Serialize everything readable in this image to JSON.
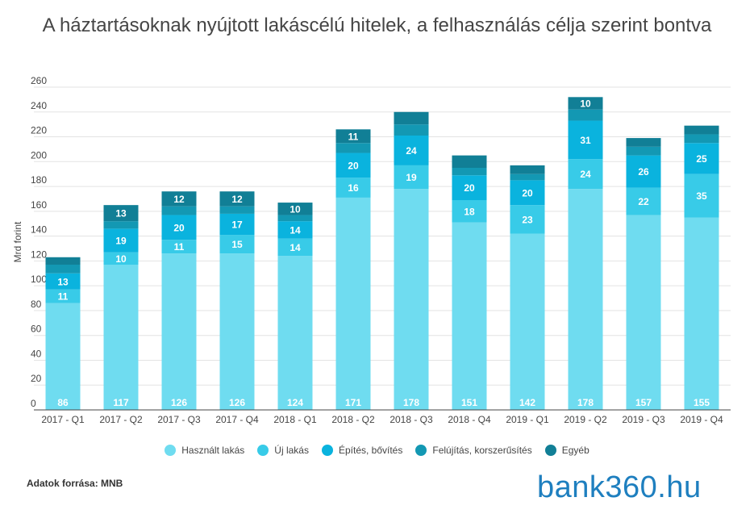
{
  "title": "A háztartásoknak nyújtott lakáscélú hitelek, a felhasználás célja szerint bontva",
  "source": "Adatok forrása: MNB",
  "logo_text": "bank360.hu",
  "colors": {
    "hasznalt": "#6fdcf0",
    "uj": "#38cbe8",
    "epites": "#0ab3de",
    "felujitas": "#1398b3",
    "egyeb": "#117f96",
    "grid": "#e3e3e3",
    "text": "#454545",
    "logo": "#1e7fbf"
  },
  "chart_data": {
    "type": "bar",
    "stacked": true,
    "ylabel": "Mrd forint",
    "xlabel": "",
    "ylim": [
      0,
      260
    ],
    "yticks": [
      0,
      20,
      40,
      60,
      80,
      100,
      120,
      140,
      160,
      180,
      200,
      220,
      240,
      260
    ],
    "categories": [
      "2017 - Q1",
      "2017 - Q2",
      "2017 - Q3",
      "2017 - Q4",
      "2018 - Q1",
      "2018 - Q2",
      "2018 - Q3",
      "2018 - Q4",
      "2019 - Q1",
      "2019 - Q2",
      "2019 - Q3",
      "2019 - Q4"
    ],
    "series": [
      {
        "name": "Használt lakás",
        "color": "#6fdcf0",
        "values": [
          86,
          117,
          126,
          126,
          124,
          171,
          178,
          151,
          142,
          178,
          157,
          155
        ],
        "labeled": true
      },
      {
        "name": "Új lakás",
        "color": "#38cbe8",
        "values": [
          11,
          10,
          11,
          15,
          14,
          16,
          19,
          18,
          23,
          24,
          22,
          35
        ],
        "labeled": true
      },
      {
        "name": "Építés, bővítés",
        "color": "#0ab3de",
        "values": [
          13,
          19,
          20,
          17,
          14,
          20,
          24,
          20,
          20,
          31,
          26,
          25
        ],
        "labeled": true
      },
      {
        "name": "Felújítás, korszerűsítés",
        "color": "#1398b3",
        "values": [
          7,
          6,
          7,
          6,
          5,
          8,
          9,
          6,
          5,
          9,
          7,
          7
        ],
        "labeled": false
      },
      {
        "name": "Egyéb",
        "color": "#117f96",
        "values": [
          6,
          13,
          12,
          12,
          10,
          11,
          10,
          10,
          7,
          10,
          7,
          7
        ],
        "labeled": [
          false,
          true,
          true,
          true,
          true,
          true,
          false,
          false,
          false,
          true,
          false,
          false
        ]
      }
    ],
    "legend_position": "bottom",
    "grid": true
  }
}
